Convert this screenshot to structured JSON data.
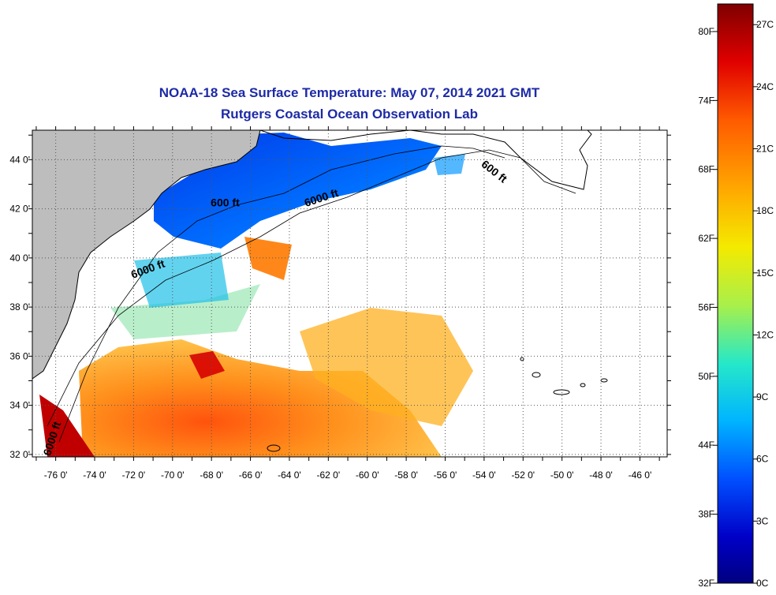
{
  "title": {
    "line1": "NOAA-18 Sea Surface Temperature:  May 07, 2014 2021 GMT",
    "line2": "Rutgers Coastal Ocean Observation Lab"
  },
  "axes": {
    "lon_labels": [
      "-76 0'",
      "-74 0'",
      "-72 0'",
      "-70 0'",
      "-68 0'",
      "-66 0'",
      "-64 0'",
      "-62 0'",
      "-60 0'",
      "-58 0'",
      "-56 0'",
      "-54 0'",
      "-52 0'",
      "-50 0'",
      "-48 0'",
      "-46 0'"
    ],
    "lon_values": [
      -76,
      -74,
      -72,
      -70,
      -68,
      -66,
      -64,
      -62,
      -60,
      -58,
      -56,
      -54,
      -52,
      -50,
      -48,
      -46
    ],
    "lat_labels": [
      "44 0'",
      "42 0'",
      "40 0'",
      "38 0'",
      "36 0'",
      "34 0'",
      "32 0'"
    ],
    "lat_values": [
      44,
      42,
      40,
      38,
      36,
      34,
      32
    ],
    "lon_range": [
      -77.2,
      -44.6
    ],
    "lat_range": [
      31.9,
      45.2
    ],
    "grid": "dotted"
  },
  "contour_labels": [
    {
      "text": "600 ft",
      "lon": -67.3,
      "lat": 42.1,
      "rotation": 0
    },
    {
      "text": "6000 ft",
      "lon": -62.3,
      "lat": 42.3,
      "rotation": -18
    },
    {
      "text": "600 ft",
      "lon": -53.6,
      "lat": 43.4,
      "rotation": 38
    },
    {
      "text": "6000 ft",
      "lon": -71.2,
      "lat": 39.4,
      "rotation": -20
    },
    {
      "text": "6000 ft",
      "lon": -76.0,
      "lat": 32.6,
      "rotation": -72
    }
  ],
  "colorbar": {
    "fahrenheit": [
      "80F",
      "74F",
      "68F",
      "62F",
      "56F",
      "50F",
      "44F",
      "38F",
      "32F"
    ],
    "celsius": [
      "27C",
      "24C",
      "21C",
      "18C",
      "15C",
      "12C",
      "9C",
      "6C",
      "3C",
      "0C"
    ],
    "colors": [
      "#7f0000",
      "#e00000",
      "#ff5a00",
      "#ffa800",
      "#f4ea00",
      "#a8f04a",
      "#26e8c8",
      "#00b4ff",
      "#0050ff",
      "#0000c8",
      "#000080"
    ]
  },
  "colors": {
    "land": "#bdbdbd",
    "title": "#1d2aa6"
  }
}
